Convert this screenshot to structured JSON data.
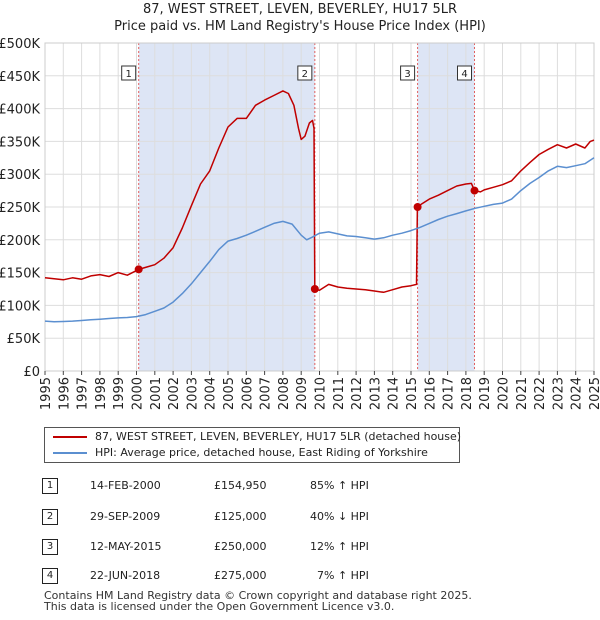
{
  "chart_data": {
    "type": "line",
    "title": "87, WEST STREET, LEVEN, BEVERLEY, HU17 5LR",
    "subtitle": "Price paid vs. HM Land Registry's House Price Index (HPI)",
    "x_ticks": [
      "1995",
      "1996",
      "1997",
      "1998",
      "1999",
      "2000",
      "2001",
      "2002",
      "2003",
      "2004",
      "2005",
      "2006",
      "2007",
      "2008",
      "2009",
      "2010",
      "2011",
      "2012",
      "2013",
      "2014",
      "2015",
      "2016",
      "2017",
      "2018",
      "2019",
      "2020",
      "2021",
      "2022",
      "2023",
      "2024",
      "2025"
    ],
    "y_ticks": [
      "£0",
      "£50K",
      "£100K",
      "£150K",
      "£200K",
      "£250K",
      "£300K",
      "£350K",
      "£400K",
      "£450K",
      "£500K"
    ],
    "xlim": [
      1995,
      2025
    ],
    "ylim": [
      0,
      500000
    ],
    "grid": true,
    "legend_placement": "below",
    "colors": {
      "property": "#c00000",
      "hpi": "#5b8fd0",
      "band": "#dde5f5",
      "grid": "#dddddd",
      "vline": "#e06060"
    },
    "series": [
      {
        "name": "87, WEST STREET, LEVEN, BEVERLEY, HU17 5LR (detached house)",
        "points": [
          [
            1995.0,
            142000
          ],
          [
            1996.0,
            139000
          ],
          [
            1996.5,
            142000
          ],
          [
            1997.0,
            140000
          ],
          [
            1997.5,
            145000
          ],
          [
            1998.0,
            147000
          ],
          [
            1998.5,
            144000
          ],
          [
            1999.0,
            150000
          ],
          [
            1999.5,
            146000
          ],
          [
            2000.12,
            154950
          ],
          [
            2000.5,
            158000
          ],
          [
            2001.0,
            162000
          ],
          [
            2001.5,
            172000
          ],
          [
            2002.0,
            188000
          ],
          [
            2002.5,
            218000
          ],
          [
            2003.0,
            252000
          ],
          [
            2003.5,
            285000
          ],
          [
            2004.0,
            305000
          ],
          [
            2004.5,
            340000
          ],
          [
            2005.0,
            372000
          ],
          [
            2005.5,
            385000
          ],
          [
            2006.0,
            385000
          ],
          [
            2006.5,
            405000
          ],
          [
            2007.0,
            413000
          ],
          [
            2007.5,
            420000
          ],
          [
            2008.0,
            427000
          ],
          [
            2008.3,
            423000
          ],
          [
            2008.6,
            405000
          ],
          [
            2008.85,
            370000
          ],
          [
            2009.0,
            353000
          ],
          [
            2009.2,
            358000
          ],
          [
            2009.45,
            378000
          ],
          [
            2009.62,
            382000
          ],
          [
            2009.7,
            370000
          ],
          [
            2009.745,
            125000
          ],
          [
            2010.0,
            123000
          ],
          [
            2010.5,
            132000
          ],
          [
            2011.0,
            128000
          ],
          [
            2011.5,
            126000
          ],
          [
            2012.0,
            125000
          ],
          [
            2012.5,
            124000
          ],
          [
            2013.0,
            122000
          ],
          [
            2013.5,
            120000
          ],
          [
            2014.0,
            124000
          ],
          [
            2014.5,
            128000
          ],
          [
            2015.0,
            130000
          ],
          [
            2015.3,
            132000
          ],
          [
            2015.35,
            250000
          ],
          [
            2015.6,
            255000
          ],
          [
            2016.0,
            262000
          ],
          [
            2016.5,
            268000
          ],
          [
            2017.0,
            275000
          ],
          [
            2017.5,
            282000
          ],
          [
            2018.0,
            285000
          ],
          [
            2018.3,
            286000
          ],
          [
            2018.47,
            275000
          ],
          [
            2018.8,
            273000
          ],
          [
            2019.0,
            276000
          ],
          [
            2019.5,
            280000
          ],
          [
            2020.0,
            284000
          ],
          [
            2020.5,
            290000
          ],
          [
            2021.0,
            305000
          ],
          [
            2021.5,
            318000
          ],
          [
            2022.0,
            330000
          ],
          [
            2022.5,
            338000
          ],
          [
            2023.0,
            345000
          ],
          [
            2023.5,
            340000
          ],
          [
            2024.0,
            346000
          ],
          [
            2024.5,
            340000
          ],
          [
            2024.8,
            350000
          ],
          [
            2025.0,
            352000
          ]
        ]
      },
      {
        "name": "HPI: Average price, detached house, East Riding of Yorkshire",
        "points": [
          [
            1995.0,
            76000
          ],
          [
            1995.5,
            75000
          ],
          [
            1996.0,
            75500
          ],
          [
            1996.5,
            76000
          ],
          [
            1997.0,
            77000
          ],
          [
            1997.5,
            78000
          ],
          [
            1998.0,
            79000
          ],
          [
            1998.5,
            80000
          ],
          [
            1999.0,
            81000
          ],
          [
            1999.5,
            81500
          ],
          [
            2000.0,
            83000
          ],
          [
            2000.5,
            86000
          ],
          [
            2001.0,
            91000
          ],
          [
            2001.5,
            96000
          ],
          [
            2002.0,
            105000
          ],
          [
            2002.5,
            118000
          ],
          [
            2003.0,
            133000
          ],
          [
            2003.5,
            150000
          ],
          [
            2004.0,
            167000
          ],
          [
            2004.5,
            185000
          ],
          [
            2005.0,
            198000
          ],
          [
            2005.5,
            202000
          ],
          [
            2006.0,
            207000
          ],
          [
            2006.5,
            213000
          ],
          [
            2007.0,
            219000
          ],
          [
            2007.5,
            225000
          ],
          [
            2008.0,
            228000
          ],
          [
            2008.5,
            224000
          ],
          [
            2009.0,
            207000
          ],
          [
            2009.3,
            200000
          ],
          [
            2009.6,
            204000
          ],
          [
            2010.0,
            210000
          ],
          [
            2010.5,
            212000
          ],
          [
            2011.0,
            209000
          ],
          [
            2011.5,
            206000
          ],
          [
            2012.0,
            205000
          ],
          [
            2012.5,
            203000
          ],
          [
            2013.0,
            201000
          ],
          [
            2013.5,
            203000
          ],
          [
            2014.0,
            207000
          ],
          [
            2014.5,
            210000
          ],
          [
            2015.0,
            214000
          ],
          [
            2015.5,
            219000
          ],
          [
            2016.0,
            225000
          ],
          [
            2016.5,
            231000
          ],
          [
            2017.0,
            236000
          ],
          [
            2017.5,
            240000
          ],
          [
            2018.0,
            244000
          ],
          [
            2018.5,
            248000
          ],
          [
            2019.0,
            251000
          ],
          [
            2019.5,
            254000
          ],
          [
            2020.0,
            256000
          ],
          [
            2020.5,
            262000
          ],
          [
            2021.0,
            275000
          ],
          [
            2021.5,
            286000
          ],
          [
            2022.0,
            295000
          ],
          [
            2022.5,
            305000
          ],
          [
            2023.0,
            312000
          ],
          [
            2023.5,
            310000
          ],
          [
            2024.0,
            313000
          ],
          [
            2024.5,
            316000
          ],
          [
            2025.0,
            325000
          ]
        ]
      }
    ],
    "sales": [
      {
        "label": "1",
        "x": 2000.12,
        "price": 154950
      },
      {
        "label": "2",
        "x": 2009.745,
        "price": 125000
      },
      {
        "label": "3",
        "x": 2015.36,
        "price": 250000
      },
      {
        "label": "4",
        "x": 2018.47,
        "price": 275000
      }
    ],
    "shaded_ranges": [
      [
        2000.12,
        2009.745
      ],
      [
        2015.36,
        2018.47
      ]
    ]
  },
  "legend": {
    "property": "87, WEST STREET, LEVEN, BEVERLEY, HU17 5LR (detached house)",
    "hpi": "HPI: Average price, detached house, East Riding of Yorkshire"
  },
  "transactions": [
    {
      "num": "1",
      "date": "14-FEB-2000",
      "price": "£154,950",
      "hpi": "85% ↑ HPI"
    },
    {
      "num": "2",
      "date": "29-SEP-2009",
      "price": "£125,000",
      "hpi": "40% ↓ HPI"
    },
    {
      "num": "3",
      "date": "12-MAY-2015",
      "price": "£250,000",
      "hpi": "12% ↑ HPI"
    },
    {
      "num": "4",
      "date": "22-JUN-2018",
      "price": "£275,000",
      "hpi": "7% ↑ HPI"
    }
  ],
  "footer": {
    "line1": "Contains HM Land Registry data © Crown copyright and database right 2025.",
    "line2": "This data is licensed under the Open Government Licence v3.0."
  }
}
